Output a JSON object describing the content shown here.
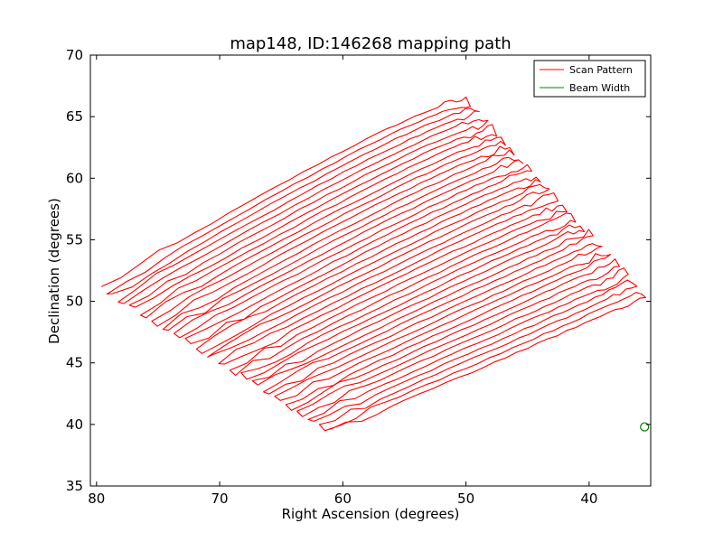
{
  "chart_data": {
    "type": "line",
    "title": "map148, ID:146268 mapping path",
    "xlabel": "Right Ascension (degrees)",
    "ylabel": "Declination (degrees)",
    "xlim": [
      80.5,
      35.0
    ],
    "ylim": [
      35,
      70
    ],
    "x_inverted": true,
    "xticks": [
      80,
      70,
      60,
      50,
      40
    ],
    "yticks": [
      35,
      40,
      45,
      50,
      55,
      60,
      65,
      70
    ],
    "grid": false,
    "legend_position": "top-right",
    "scan_pattern": {
      "rows": 42,
      "first_row": {
        "ra_start": 79.6,
        "dec_start": 51.1,
        "ra_mid": 60.0,
        "dec_mid": 62.2,
        "ra_end": 50.0,
        "dec_end": 66.4
      },
      "last_row": {
        "ra_start": 61.0,
        "dec_start": 39.4,
        "ra_mid": 45.0,
        "dec_mid": 46.2,
        "ra_end": 35.4,
        "dec_end": 50.5
      }
    },
    "series": [
      {
        "name": "Scan Pattern",
        "color": "#ff0000",
        "kind": "raster-scan"
      },
      {
        "name": "Beam Width",
        "color": "#008000",
        "kind": "circle",
        "ra": 35.5,
        "dec": 39.8
      }
    ]
  }
}
